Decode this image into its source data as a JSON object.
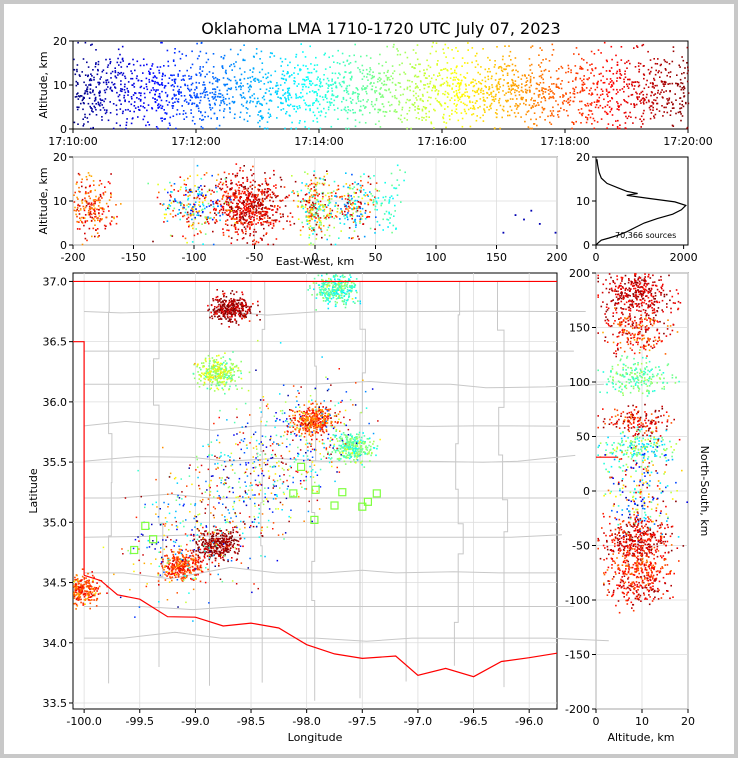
{
  "chart_data": {
    "type": "scatter",
    "title": "Oklahoma LMA 1710-1720 UTC July 07, 2023",
    "colormap": "jet (color by time)",
    "colors": {
      "boundary": "#ff0000",
      "county": "#c8c8c8",
      "station": "#7fff3f"
    },
    "panels": {
      "time_height": {
        "ylabel": "Altitude, km",
        "ylim": [
          0,
          20
        ],
        "yticks": [
          "0",
          "10",
          "20"
        ],
        "xlim": [
          "17:10:00",
          "17:20:00"
        ],
        "xticks": [
          "17:10:00",
          "17:12:00",
          "17:14:00",
          "17:16:00",
          "17:18:00",
          "17:20:00"
        ]
      },
      "ew_height": {
        "xlabel": "East-West, km",
        "ylabel": "Altitude, km",
        "xlim": [
          -200,
          200
        ],
        "ylim": [
          0,
          20
        ],
        "xticks": [
          "-200",
          "-150",
          "-100",
          "-50",
          "0",
          "50",
          "100",
          "150",
          "200"
        ],
        "yticks": [
          "0",
          "10",
          "20"
        ],
        "grid": true
      },
      "histogram": {
        "annotation": "70,366 sources",
        "xlim": [
          0,
          2100
        ],
        "ylim": [
          0,
          20
        ],
        "xticks": [
          "0",
          "2000"
        ],
        "yticks": [
          "0",
          "10",
          "20"
        ],
        "profile": [
          [
            0,
            0
          ],
          [
            60,
            0.6
          ],
          [
            120,
            1.1
          ],
          [
            300,
            1.6
          ],
          [
            500,
            2.2
          ],
          [
            700,
            3.0
          ],
          [
            900,
            4.0
          ],
          [
            1100,
            5.0
          ],
          [
            1400,
            6.0
          ],
          [
            1750,
            7.0
          ],
          [
            1950,
            8.0
          ],
          [
            2050,
            9.0
          ],
          [
            1800,
            9.8
          ],
          [
            1200,
            10.6
          ],
          [
            700,
            11.3
          ],
          [
            950,
            11.7
          ],
          [
            700,
            12.2
          ],
          [
            500,
            13.0
          ],
          [
            250,
            14.0
          ],
          [
            120,
            15.2
          ],
          [
            70,
            16.5
          ],
          [
            40,
            18.0
          ],
          [
            20,
            19.5
          ]
        ]
      },
      "plan_view": {
        "xlabel": "Longitude",
        "ylabel": "Latitude",
        "xlim": [
          -100.1,
          -95.75
        ],
        "ylim": [
          33.45,
          37.07
        ],
        "xticks": [
          "-100.0",
          "-99.5",
          "-99.0",
          "-98.5",
          "-98.0",
          "-97.5",
          "-97.0",
          "-96.5",
          "-96.0"
        ],
        "yticks": [
          "33.5",
          "34.0",
          "34.5",
          "35.0",
          "35.5",
          "36.0",
          "36.5",
          "37.0"
        ],
        "grid": true,
        "stations": [
          [
            -99.45,
            34.97
          ],
          [
            -99.38,
            34.86
          ],
          [
            -99.55,
            34.77
          ],
          [
            -98.05,
            35.46
          ],
          [
            -98.12,
            35.24
          ],
          [
            -97.92,
            35.27
          ],
          [
            -97.93,
            35.02
          ],
          [
            -97.75,
            35.14
          ],
          [
            -97.68,
            35.25
          ],
          [
            -97.5,
            35.13
          ],
          [
            -97.45,
            35.17
          ],
          [
            -97.37,
            35.24
          ]
        ],
        "storms": [
          {
            "lon": -98.68,
            "lat": 36.78,
            "t": 0.97
          },
          {
            "lon": -98.8,
            "lat": 34.82,
            "t": 0.98
          },
          {
            "lon": -99.12,
            "lat": 34.64,
            "t": 0.82
          },
          {
            "lon": -100.05,
            "lat": 34.44,
            "t": 0.8
          },
          {
            "lon": -97.95,
            "lat": 35.85,
            "t": 0.8
          },
          {
            "lon": -97.6,
            "lat": 35.62,
            "t": 0.48
          },
          {
            "lon": -98.8,
            "lat": 36.25,
            "t": 0.55
          },
          {
            "lon": -97.75,
            "lat": 36.94,
            "t": 0.45
          }
        ]
      },
      "ns_height": {
        "xlabel": "Altitude, km",
        "ylabel": "North-South, km",
        "xlim": [
          0,
          20
        ],
        "ylim": [
          -200,
          200
        ],
        "xticks": [
          "0",
          "10",
          "20"
        ],
        "yticks": [
          "-200",
          "-150",
          "-100",
          "-50",
          "0",
          "50",
          "100",
          "150",
          "200"
        ],
        "grid": true
      }
    }
  }
}
